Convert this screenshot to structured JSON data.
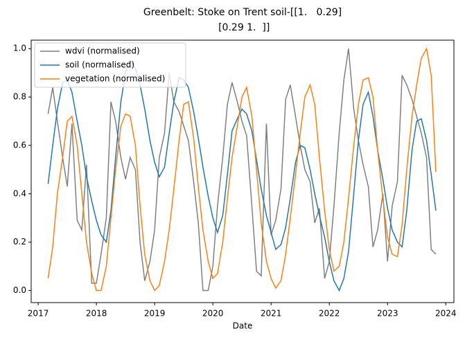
{
  "chart_data": {
    "type": "line",
    "title": [
      "Greenbelt: Stoke on Trent soil-[[1.   0.29]",
      " [0.29 1.  ]]"
    ],
    "x_label": "Date",
    "x": [
      2017.17,
      2017.25,
      2017.33,
      2017.42,
      2017.5,
      2017.58,
      2017.67,
      2017.75,
      2017.83,
      2017.92,
      2018.0,
      2018.08,
      2018.17,
      2018.25,
      2018.33,
      2018.42,
      2018.5,
      2018.58,
      2018.67,
      2018.75,
      2018.83,
      2018.92,
      2019.0,
      2019.08,
      2019.17,
      2019.25,
      2019.33,
      2019.42,
      2019.5,
      2019.58,
      2019.67,
      2019.75,
      2019.83,
      2019.92,
      2020.0,
      2020.08,
      2020.17,
      2020.25,
      2020.33,
      2020.42,
      2020.5,
      2020.58,
      2020.67,
      2020.75,
      2020.83,
      2020.92,
      2021.0,
      2021.08,
      2021.17,
      2021.25,
      2021.33,
      2021.42,
      2021.5,
      2021.58,
      2021.67,
      2021.75,
      2021.83,
      2021.92,
      2022.0,
      2022.08,
      2022.17,
      2022.25,
      2022.33,
      2022.42,
      2022.5,
      2022.58,
      2022.67,
      2022.75,
      2022.83,
      2022.92,
      2023.0,
      2023.08,
      2023.17,
      2023.25,
      2023.33,
      2023.42,
      2023.5,
      2023.58,
      2023.67,
      2023.75,
      2023.83
    ],
    "series": [
      {
        "name": "wdvi (normalised)",
        "color": "#7f7f7f",
        "values": [
          0.73,
          0.84,
          0.7,
          0.55,
          0.43,
          0.69,
          0.29,
          0.25,
          0.52,
          0.03,
          0.03,
          0.15,
          0.3,
          0.78,
          0.7,
          0.55,
          0.46,
          0.55,
          0.5,
          0.2,
          0.04,
          0.12,
          0.25,
          0.55,
          0.65,
          0.9,
          0.78,
          0.74,
          0.68,
          0.62,
          0.45,
          0.28,
          0,
          0,
          0.1,
          0.35,
          0.55,
          0.77,
          0.86,
          0.78,
          0.7,
          0.64,
          0.35,
          0.08,
          0.06,
          0.69,
          0.23,
          0.29,
          0.42,
          0.79,
          0.85,
          0.72,
          0.6,
          0.5,
          0.45,
          0.28,
          0.34,
          0.05,
          0.12,
          0.35,
          0.65,
          0.87,
          1.0,
          0.75,
          0.62,
          0.52,
          0.43,
          0.18,
          0.25,
          0.4,
          0.12,
          0.35,
          0.45,
          0.89,
          0.85,
          0.79,
          0.72,
          0.65,
          0.55,
          0.17,
          0.15
        ]
      },
      {
        "name": "soil (normalised)",
        "color": "#1f77b4",
        "values": [
          0.44,
          0.6,
          0.75,
          0.86,
          0.87,
          0.82,
          0.7,
          0.6,
          0.47,
          0.37,
          0.29,
          0.23,
          0.2,
          0.33,
          0.55,
          0.78,
          0.9,
          0.95,
          0.92,
          0.85,
          0.75,
          0.62,
          0.53,
          0.47,
          0.51,
          0.65,
          0.78,
          0.88,
          0.87,
          0.84,
          0.74,
          0.63,
          0.51,
          0.39,
          0.3,
          0.24,
          0.31,
          0.48,
          0.66,
          0.71,
          0.75,
          0.73,
          0.66,
          0.54,
          0.42,
          0.31,
          0.24,
          0.17,
          0.19,
          0.26,
          0.38,
          0.53,
          0.6,
          0.59,
          0.5,
          0.4,
          0.31,
          0.22,
          0.12,
          0.04,
          0,
          0.05,
          0.16,
          0.4,
          0.62,
          0.77,
          0.82,
          0.72,
          0.58,
          0.46,
          0.34,
          0.25,
          0.2,
          0.18,
          0.33,
          0.58,
          0.7,
          0.71,
          0.62,
          0.48,
          0.33
        ]
      },
      {
        "name": "vegetation (normalised)",
        "color": "#ff7f0e",
        "values": [
          0.05,
          0.18,
          0.4,
          0.55,
          0.7,
          0.72,
          0.6,
          0.4,
          0.2,
          0.07,
          0,
          0,
          0.1,
          0.3,
          0.5,
          0.68,
          0.73,
          0.72,
          0.6,
          0.35,
          0.15,
          0.04,
          0,
          0.02,
          0.12,
          0.25,
          0.42,
          0.62,
          0.77,
          0.78,
          0.63,
          0.43,
          0.25,
          0.12,
          0.05,
          0.07,
          0.2,
          0.38,
          0.55,
          0.68,
          0.8,
          0.84,
          0.72,
          0.5,
          0.28,
          0.12,
          0.05,
          0.01,
          0.04,
          0.15,
          0.3,
          0.48,
          0.65,
          0.8,
          0.85,
          0.77,
          0.55,
          0.33,
          0.17,
          0.08,
          0.1,
          0.2,
          0.38,
          0.6,
          0.77,
          0.87,
          0.88,
          0.8,
          0.58,
          0.38,
          0.22,
          0.15,
          0.14,
          0.27,
          0.5,
          0.72,
          0.85,
          0.96,
          1.0,
          0.89,
          0.49
        ]
      }
    ],
    "xlim": [
      2016.88,
      2024.14
    ],
    "xticks": [
      2017,
      2018,
      2019,
      2020,
      2021,
      2022,
      2023,
      2024
    ],
    "ylim": [
      -0.05,
      1.035
    ],
    "yticks": [
      {
        "value": 0,
        "label": "0.0"
      },
      {
        "value": 0.2,
        "label": "0.2"
      },
      {
        "value": 0.4,
        "label": "0.4"
      },
      {
        "value": 0.6,
        "label": "0.6"
      },
      {
        "value": 0.8,
        "label": "0.8"
      },
      {
        "value": 1.0,
        "label": "1.0"
      }
    ],
    "legend": "upper left"
  }
}
